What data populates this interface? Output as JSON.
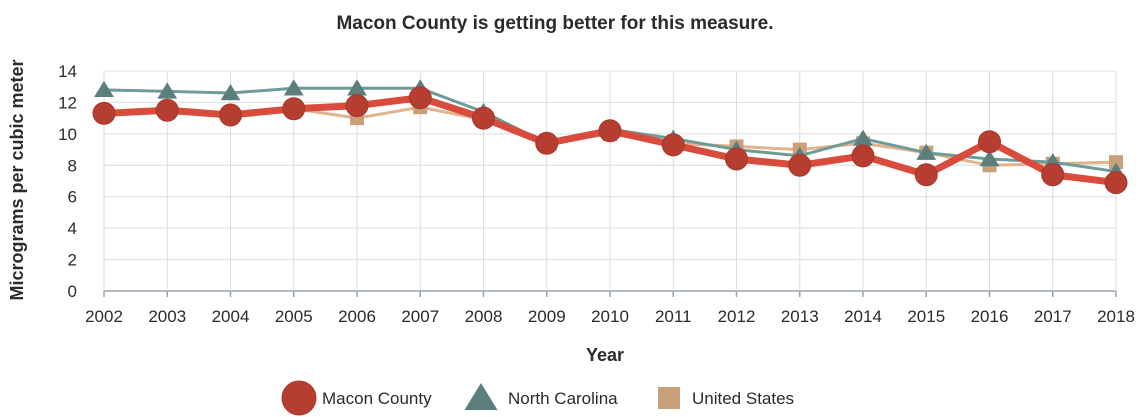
{
  "chart_data": {
    "type": "line",
    "title": "Macon County is getting better for this measure.",
    "xlabel": "Year",
    "ylabel": "Micrograms per cubic meter",
    "ylim": [
      0,
      14
    ],
    "yticks": [
      0,
      2,
      4,
      6,
      8,
      10,
      12,
      14
    ],
    "grid": true,
    "legend_position": "bottom",
    "x": [
      "2002",
      "2003",
      "2004",
      "2005",
      "2006",
      "2007",
      "2008",
      "2009",
      "2010",
      "2011",
      "2012",
      "2013",
      "2014",
      "2015",
      "2016",
      "2017",
      "2018"
    ],
    "series": [
      {
        "name": "United States",
        "marker": "square",
        "color": "#e2b48e",
        "marker_color": "#c9a07a",
        "values": [
          11.3,
          11.5,
          11.2,
          11.6,
          11.0,
          11.7,
          10.9,
          9.4,
          10.0,
          9.4,
          9.2,
          9.0,
          9.4,
          8.8,
          8.0,
          8.1,
          8.2
        ]
      },
      {
        "name": "North Carolina",
        "marker": "triangle",
        "color": "#6f9b97",
        "marker_color": "#5c7f7e",
        "values": [
          12.8,
          12.7,
          12.6,
          12.9,
          12.9,
          12.9,
          11.4,
          9.4,
          10.3,
          9.7,
          9.0,
          8.6,
          9.7,
          8.8,
          8.4,
          8.2,
          7.6
        ]
      },
      {
        "name": "Macon County",
        "marker": "circle",
        "color": "#d94b3c",
        "marker_color": "#b53e30",
        "values": [
          11.3,
          11.5,
          11.2,
          11.6,
          11.8,
          12.3,
          11.0,
          9.4,
          10.2,
          9.3,
          8.4,
          8.0,
          8.6,
          7.4,
          9.5,
          7.4,
          6.9
        ]
      }
    ],
    "legend": [
      "Macon County",
      "North Carolina",
      "United States"
    ]
  }
}
